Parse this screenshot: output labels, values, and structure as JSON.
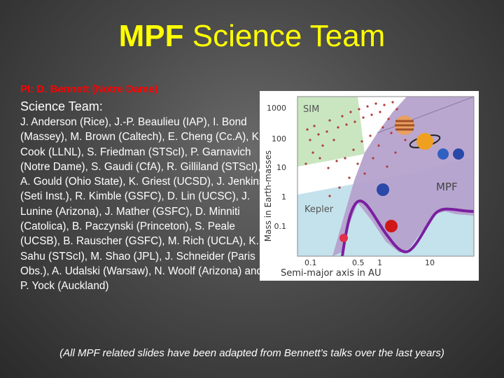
{
  "title": {
    "bold": "MPF",
    "rest": " Science Team"
  },
  "pi": "PI: D. Bennett (Notre Dame)",
  "team_heading": "Science Team:",
  "members": "J. Anderson (Rice), J.-P. Beaulieu (IAP), I. Bond (Massey), M. Brown (Caltech), E. Cheng (Cc.A), K. Cook (LLNL), S. Friedman (STScI), P. Garnavich (Notre Dame), S. Gaudi (CfA), R. Gilliland (STScI), A. Gould (Ohio State), K. Griest (UCSD), J. Jenkins (Seti Inst.), R. Kimble (GSFC), D. Lin (UCSC), J. Lunine (Arizona), J. Mather (GSFC), D. Minniti (Catolica), B. Paczynski (Princeton), S. Peale (UCSB), B. Rauscher (GSFC), M. Rich (UCLA), K. Sahu (STScI), M. Shao (JPL), J. Schneider (Paris Obs.), A. Udalski (Warsaw), N. Woolf (Arizona) and P. Yock (Auckland)",
  "footer": "(All MPF related slides have been adapted from Bennett’s talks over the last years)",
  "figure": {
    "ylabel": "Mass in Earth-masses",
    "xlabel": "Semi-major axis in AU",
    "region_labels": {
      "sim": "SIM",
      "kepler": "Kepler",
      "mpf": "MPF"
    },
    "y_ticks": [
      "1000",
      "100",
      "10",
      "1",
      "0.1"
    ],
    "x_ticks": [
      "0.1",
      "0.5",
      "1",
      "10"
    ],
    "colors": {
      "sim": "#c9e6c0",
      "kepler": "#c4e2ec",
      "mpf": "#b4a0cc",
      "curve": "#7a1fa0",
      "dots": "#b03c3c"
    }
  }
}
